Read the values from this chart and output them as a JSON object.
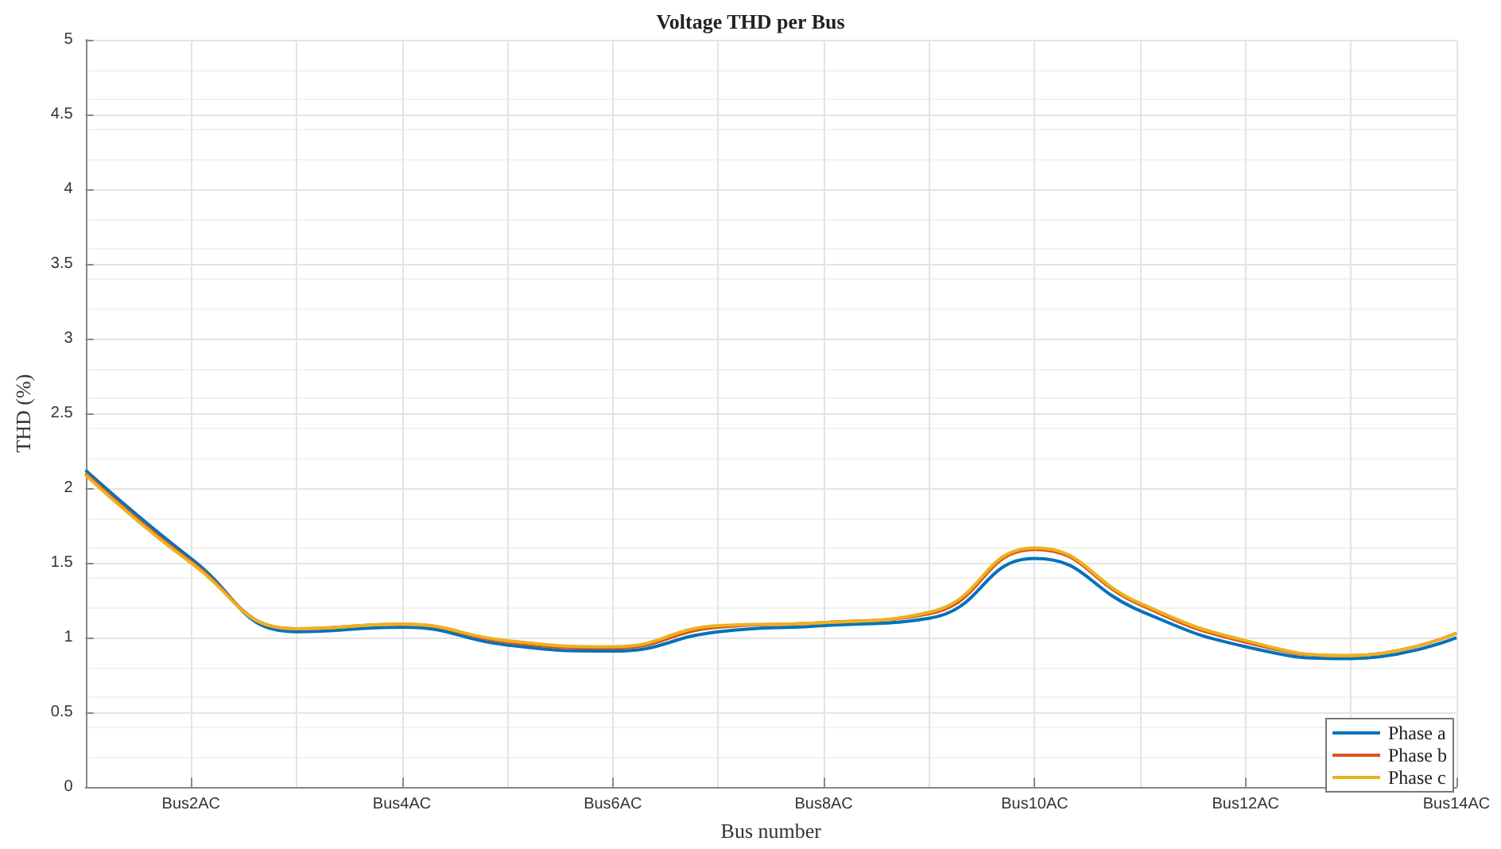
{
  "chart_data": {
    "type": "line",
    "title": "Voltage THD per Bus",
    "xlabel": "Bus number",
    "ylabel": "THD (%)",
    "categories": [
      null,
      "Bus2AC",
      null,
      "Bus4AC",
      null,
      "Bus6AC",
      null,
      "Bus8AC",
      null,
      "Bus10AC",
      null,
      "Bus12AC",
      null,
      "Bus14AC"
    ],
    "series": [
      {
        "name": "Phase a",
        "color": "#0072bd",
        "values": [
          2.12,
          1.53,
          1.04,
          1.07,
          0.95,
          0.91,
          1.04,
          1.08,
          1.13,
          1.53,
          1.18,
          0.94,
          0.86,
          1.0
        ]
      },
      {
        "name": "Phase b",
        "color": "#d95319",
        "values": [
          2.1,
          1.51,
          1.06,
          1.09,
          0.97,
          0.93,
          1.07,
          1.1,
          1.16,
          1.59,
          1.22,
          0.97,
          0.88,
          1.03
        ]
      },
      {
        "name": "Phase c",
        "color": "#edb120",
        "values": [
          2.09,
          1.5,
          1.06,
          1.09,
          0.98,
          0.94,
          1.08,
          1.1,
          1.17,
          1.6,
          1.23,
          0.98,
          0.88,
          1.03
        ]
      }
    ],
    "ylim": [
      0,
      5
    ],
    "yticks": [
      0,
      0.5,
      1,
      1.5,
      2,
      2.5,
      3,
      3.5,
      4,
      4.5,
      5
    ],
    "grid": true,
    "legend": "bottom right",
    "marker": "none",
    "line_style": "solid"
  }
}
